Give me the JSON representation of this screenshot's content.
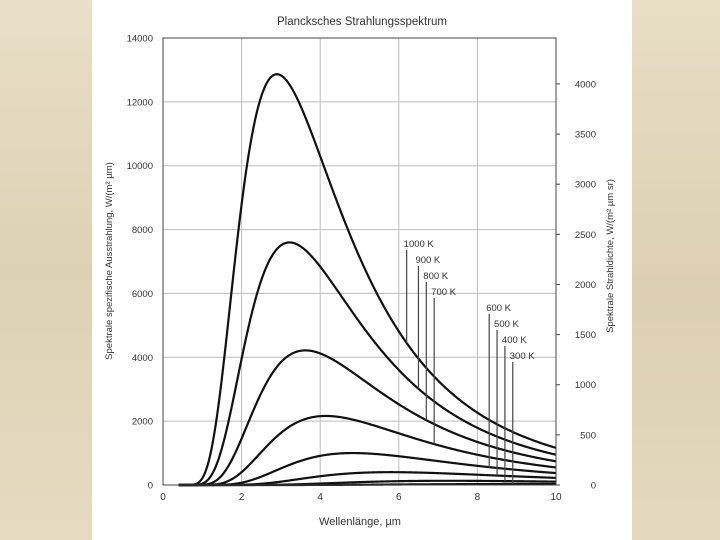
{
  "chart_data": {
    "type": "line",
    "title": "Plancksches Strahlungsspektrum",
    "xlabel": "Wellenlänge, µm",
    "ylabel": "Spektrale spezifische Ausstrahlung, W/(m² µm)",
    "ylabel_right": "Spektrale Strahldichte, W/(m² µm sr)",
    "xlim": [
      0,
      10
    ],
    "ylim": [
      0,
      14000
    ],
    "ylim_right": [
      0,
      4458
    ],
    "x_ticks": [
      0,
      2,
      4,
      6,
      8,
      10
    ],
    "y_ticks": [
      0,
      2000,
      4000,
      6000,
      8000,
      10000,
      12000,
      14000
    ],
    "y_ticks_right": [
      0,
      500,
      1000,
      1500,
      2000,
      2500,
      3000,
      3500,
      4000
    ],
    "grid": true,
    "legend": "labels at right, inside plot",
    "series": [
      {
        "name": "1000 K",
        "temperature": 1000,
        "label_x": 6.2,
        "peak": [
          2.9,
          12850
        ]
      },
      {
        "name": "900 K",
        "temperature": 900,
        "label_x": 6.5,
        "peak": [
          3.2,
          7600
        ]
      },
      {
        "name": "800 K",
        "temperature": 800,
        "label_x": 6.7,
        "peak": [
          3.6,
          4200
        ]
      },
      {
        "name": "700 K",
        "temperature": 700,
        "label_x": 6.9,
        "peak": [
          4.1,
          2150
        ]
      },
      {
        "name": "600 K",
        "temperature": 600,
        "label_x": 8.3,
        "peak": [
          4.8,
          950
        ]
      },
      {
        "name": "500 K",
        "temperature": 500,
        "label_x": 8.5,
        "peak": [
          5.8,
          380
        ]
      },
      {
        "name": "400 K",
        "temperature": 400,
        "label_x": 8.7,
        "peak": [
          7.2,
          120
        ]
      },
      {
        "name": "300 K",
        "temperature": 300,
        "label_x": 8.9,
        "peak": [
          9.6,
          30
        ]
      }
    ]
  }
}
